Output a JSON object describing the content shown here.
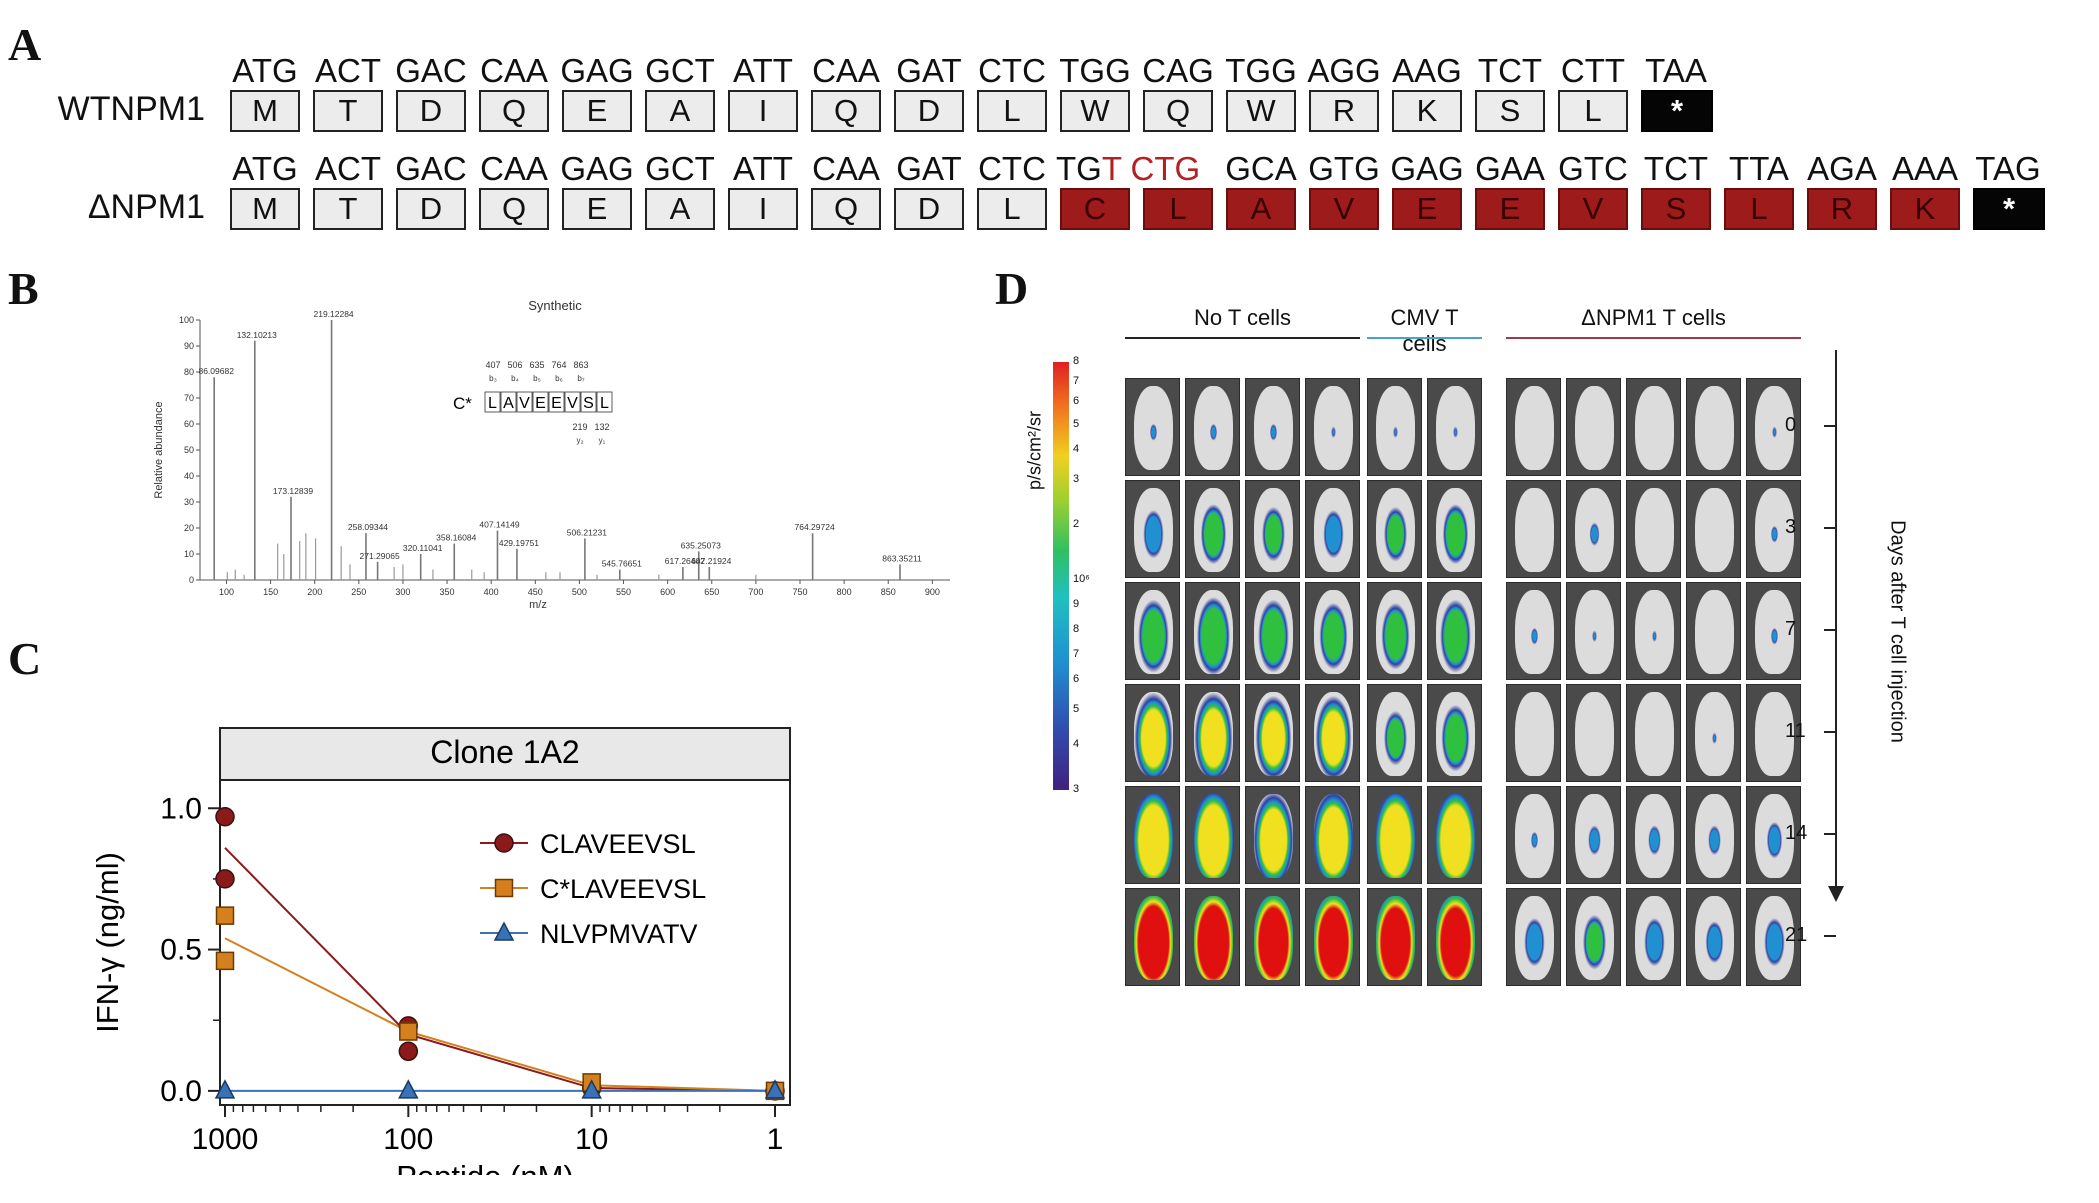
{
  "panel_labels": {
    "a": "A",
    "b": "B",
    "c": "C",
    "d": "D"
  },
  "panelA": {
    "wt": {
      "label": "WTNPM1",
      "codons": [
        "ATG",
        "ACT",
        "GAC",
        "CAA",
        "GAG",
        "GCT",
        "ATT",
        "CAA",
        "GAT",
        "CTC",
        "TGG",
        "CAG",
        "TGG",
        "AGG",
        "AAG",
        "TCT",
        "CTT",
        "TAA"
      ],
      "aa": [
        "M",
        "T",
        "D",
        "Q",
        "E",
        "A",
        "I",
        "Q",
        "D",
        "L",
        "W",
        "Q",
        "W",
        "R",
        "K",
        "S",
        "L",
        "*"
      ]
    },
    "mut": {
      "label": "ΔNPM1",
      "codons": [
        "ATG",
        "ACT",
        "GAC",
        "CAA",
        "GAG",
        "GCT",
        "ATT",
        "CAA",
        "GAT",
        "CTC"
      ],
      "codon_tg": "TG",
      "codon_insert": "T CTG",
      "codons_after": [
        "GCA",
        "GTG",
        "GAG",
        "GAA",
        "GTC",
        "TCT",
        "TTA",
        "AGA",
        "AAA",
        "TAG"
      ],
      "aa": [
        "M",
        "T",
        "D",
        "Q",
        "E",
        "A",
        "I",
        "Q",
        "D",
        "L",
        "C",
        "L",
        "A",
        "V",
        "E",
        "E",
        "V",
        "S",
        "L",
        "R",
        "K",
        "*"
      ]
    },
    "colors": {
      "mutant": "#9e1b1b",
      "insert_text": "#b22222",
      "stop": "#050505"
    }
  },
  "panelB": {
    "title": "Synthetic",
    "xlabel": "m/z",
    "ylabel": "Relative abundance",
    "peptide": "C* LAVEEVSL",
    "peptide_prefix": "C*",
    "peptide_residues": [
      "L",
      "A",
      "V",
      "E",
      "E",
      "V",
      "S",
      "L"
    ],
    "b_ion_masses": [
      "407",
      "506",
      "635",
      "764",
      "863"
    ],
    "b_ion_names": [
      "b₃",
      "b₄",
      "b₅",
      "b₆",
      "b₇"
    ],
    "y_ion_masses": [
      "219",
      "132"
    ],
    "y_ion_names": [
      "y₂",
      "y₁"
    ],
    "chart_data": {
      "type": "bar",
      "xlim": [
        70,
        920
      ],
      "ylim": [
        0,
        100
      ],
      "xticks": [
        100,
        150,
        200,
        250,
        300,
        350,
        400,
        450,
        500,
        550,
        600,
        650,
        700,
        750,
        800,
        850,
        900
      ],
      "yticks": [
        0,
        10,
        20,
        30,
        40,
        50,
        60,
        70,
        80,
        90,
        100
      ],
      "peaks": [
        {
          "mz": 86.09682,
          "value": 78,
          "label": "86.09682"
        },
        {
          "mz": 132.10213,
          "value": 92,
          "label": "132.10213"
        },
        {
          "mz": 173.12839,
          "value": 32,
          "label": "173.12839"
        },
        {
          "mz": 219.12284,
          "value": 100,
          "label": "219.12284"
        },
        {
          "mz": 258.09344,
          "value": 18,
          "label": "258.09344"
        },
        {
          "mz": 271.29065,
          "value": 7,
          "label": "271.29065"
        },
        {
          "mz": 320.11041,
          "value": 10,
          "label": "320.11041"
        },
        {
          "mz": 358.16084,
          "value": 14,
          "label": "358.16084"
        },
        {
          "mz": 407.14149,
          "value": 19,
          "label": "407.14149"
        },
        {
          "mz": 429.19751,
          "value": 12,
          "label": "429.19751"
        },
        {
          "mz": 506.21231,
          "value": 16,
          "label": "506.21231"
        },
        {
          "mz": 545.76651,
          "value": 4,
          "label": "545.76651"
        },
        {
          "mz": 617.26402,
          "value": 5,
          "label": "617.26402"
        },
        {
          "mz": 635.25073,
          "value": 11,
          "label": "635.25073"
        },
        {
          "mz": 647.21924,
          "value": 5,
          "label": "647.21924"
        },
        {
          "mz": 764.29724,
          "value": 18,
          "label": "764.29724"
        },
        {
          "mz": 863.35211,
          "value": 6,
          "label": "863.35211"
        }
      ],
      "minor_peaks": [
        {
          "mz": 101,
          "value": 3
        },
        {
          "mz": 110,
          "value": 4
        },
        {
          "mz": 120,
          "value": 2
        },
        {
          "mz": 158,
          "value": 14
        },
        {
          "mz": 165,
          "value": 10
        },
        {
          "mz": 183,
          "value": 15
        },
        {
          "mz": 190,
          "value": 18
        },
        {
          "mz": 201,
          "value": 16
        },
        {
          "mz": 230,
          "value": 13
        },
        {
          "mz": 240,
          "value": 6
        },
        {
          "mz": 290,
          "value": 5
        },
        {
          "mz": 300,
          "value": 6
        },
        {
          "mz": 334,
          "value": 4
        },
        {
          "mz": 378,
          "value": 4
        },
        {
          "mz": 392,
          "value": 3
        },
        {
          "mz": 462,
          "value": 3
        },
        {
          "mz": 478,
          "value": 3
        },
        {
          "mz": 520,
          "value": 2
        },
        {
          "mz": 590,
          "value": 2
        },
        {
          "mz": 700,
          "value": 2
        }
      ]
    }
  },
  "panelC": {
    "chart_data": {
      "type": "line",
      "title": "Clone 1A2",
      "xlabel": "Peptide (nM)",
      "ylabel": "IFN-γ (ng/ml)",
      "xscale": "log-reversed",
      "x_ticks": [
        "1000",
        "100",
        "10",
        "1"
      ],
      "x_tick_values": [
        1000,
        100,
        10,
        1
      ],
      "y_ticks": [
        "0.0",
        "0.5",
        "1.0"
      ],
      "y_tick_values": [
        0,
        0.5,
        1.0
      ],
      "ylim": [
        -0.05,
        1.1
      ],
      "series": [
        {
          "name": "CLAVEEVSL",
          "color": "#8b1a1a",
          "marker": "circle",
          "x": [
            1000,
            100,
            10,
            1
          ],
          "mean": [
            0.86,
            0.2,
            0.01,
            0.0
          ],
          "points": [
            [
              1000,
              0.97
            ],
            [
              1000,
              0.75
            ],
            [
              100,
              0.23
            ],
            [
              100,
              0.14
            ],
            [
              10,
              0.01
            ],
            [
              1,
              0.0
            ]
          ]
        },
        {
          "name": "C*LAVEEVSL",
          "color": "#d4801e",
          "marker": "square",
          "x": [
            1000,
            100,
            10,
            1
          ],
          "mean": [
            0.54,
            0.21,
            0.02,
            0.0
          ],
          "points": [
            [
              1000,
              0.62
            ],
            [
              1000,
              0.46
            ],
            [
              100,
              0.21
            ],
            [
              10,
              0.03
            ],
            [
              1,
              0.0
            ]
          ]
        },
        {
          "name": "NLVPMVATV",
          "color": "#3a72b8",
          "marker": "triangle",
          "x": [
            1000,
            100,
            10,
            1
          ],
          "mean": [
            0.0,
            0.0,
            0.0,
            0.0
          ],
          "points": [
            [
              1000,
              0.0
            ],
            [
              100,
              0.0
            ],
            [
              10,
              0.0
            ],
            [
              1,
              0.0
            ]
          ]
        }
      ]
    }
  },
  "panelD": {
    "groups": [
      {
        "label": "No T cells",
        "count": 4,
        "line_color": "#222222"
      },
      {
        "label": "CMV T cells",
        "count": 2,
        "line_color": "#4aa3c8"
      },
      {
        "label": "ΔNPM1 T cells",
        "count": 5,
        "line_color": "#9e3b4a"
      }
    ],
    "colorbar_label": "p/s/cm²/sr",
    "colorbar_upper_ticks": [
      "8",
      "7",
      "6",
      "5",
      "4",
      "3",
      "2"
    ],
    "colorbar_lower_ticks": [
      "10⁶",
      "9",
      "8",
      "7",
      "6",
      "5",
      "4",
      "3"
    ],
    "days": [
      "0",
      "3",
      "7",
      "11",
      "14",
      "21"
    ],
    "axis_label": "Days after T cell injection",
    "signal_levels": [
      [
        [
          0.1,
          0.1,
          0.1,
          0.05
        ],
        [
          0.05,
          0.05
        ],
        [
          0.0,
          0.0,
          0.0,
          0.0,
          0.05
        ]
      ],
      [
        [
          0.35,
          0.45,
          0.4,
          0.35
        ],
        [
          0.4,
          0.45
        ],
        [
          0.0,
          0.15,
          0.0,
          0.0,
          0.1
        ]
      ],
      [
        [
          0.55,
          0.6,
          0.55,
          0.5
        ],
        [
          0.5,
          0.55
        ],
        [
          0.1,
          0.05,
          0.05,
          0.0,
          0.1
        ]
      ],
      [
        [
          0.7,
          0.7,
          0.65,
          0.65
        ],
        [
          0.4,
          0.5
        ],
        [
          0.0,
          0.0,
          0.0,
          0.05,
          0.0
        ]
      ],
      [
        [
          0.85,
          0.85,
          0.75,
          0.8
        ],
        [
          0.85,
          0.85
        ],
        [
          0.1,
          0.2,
          0.2,
          0.2,
          0.25
        ]
      ],
      [
        [
          1.0,
          1.0,
          0.95,
          0.95
        ],
        [
          0.95,
          0.95
        ],
        [
          0.35,
          0.4,
          0.35,
          0.3,
          0.35
        ]
      ]
    ]
  }
}
